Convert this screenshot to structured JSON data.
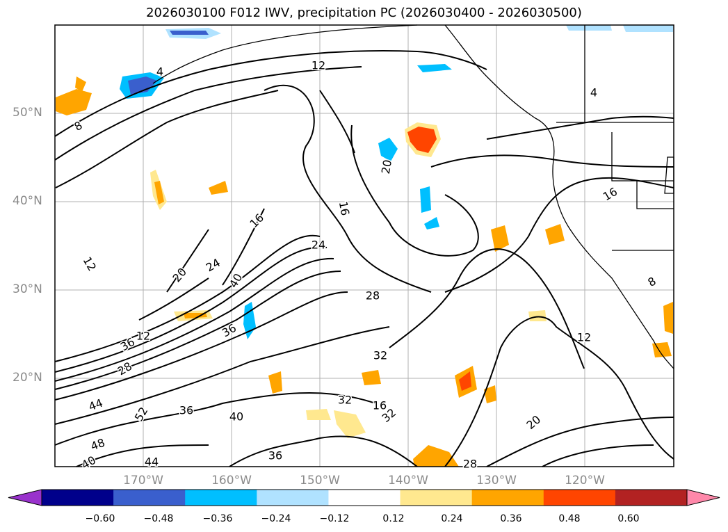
{
  "title": "2026030100 F012 IWV, precipitation PC (2026030400 - 2026030500)",
  "lat_labels": [
    "50°N",
    "40°N",
    "30°N",
    "20°N"
  ],
  "lon_labels": [
    "170°W",
    "160°W",
    "150°W",
    "140°W",
    "130°W",
    "120°W"
  ],
  "contour_labels": [
    "4",
    "12",
    "4",
    "8",
    "20",
    "16",
    "16",
    "24",
    "20",
    "24",
    "40",
    "12",
    "28",
    "32",
    "36",
    "12",
    "16",
    "28",
    "16",
    "36",
    "40",
    "44",
    "52",
    "48",
    "40",
    "44",
    "36",
    "32",
    "28",
    "32",
    "20",
    "36",
    "12",
    "8"
  ],
  "colorbar": {
    "ticks": [
      "−0.60",
      "−0.48",
      "−0.36",
      "−0.24",
      "−0.12",
      "0.12",
      "0.24",
      "0.36",
      "0.48",
      "0.60"
    ],
    "colors": [
      "#9932cc",
      "#00008b",
      "#3a5fcd",
      "#00bfff",
      "#b0e2ff",
      "#ffffff",
      "#ffe88f",
      "#ffa500",
      "#ff4500",
      "#b22222",
      "#ff88aa"
    ]
  }
}
